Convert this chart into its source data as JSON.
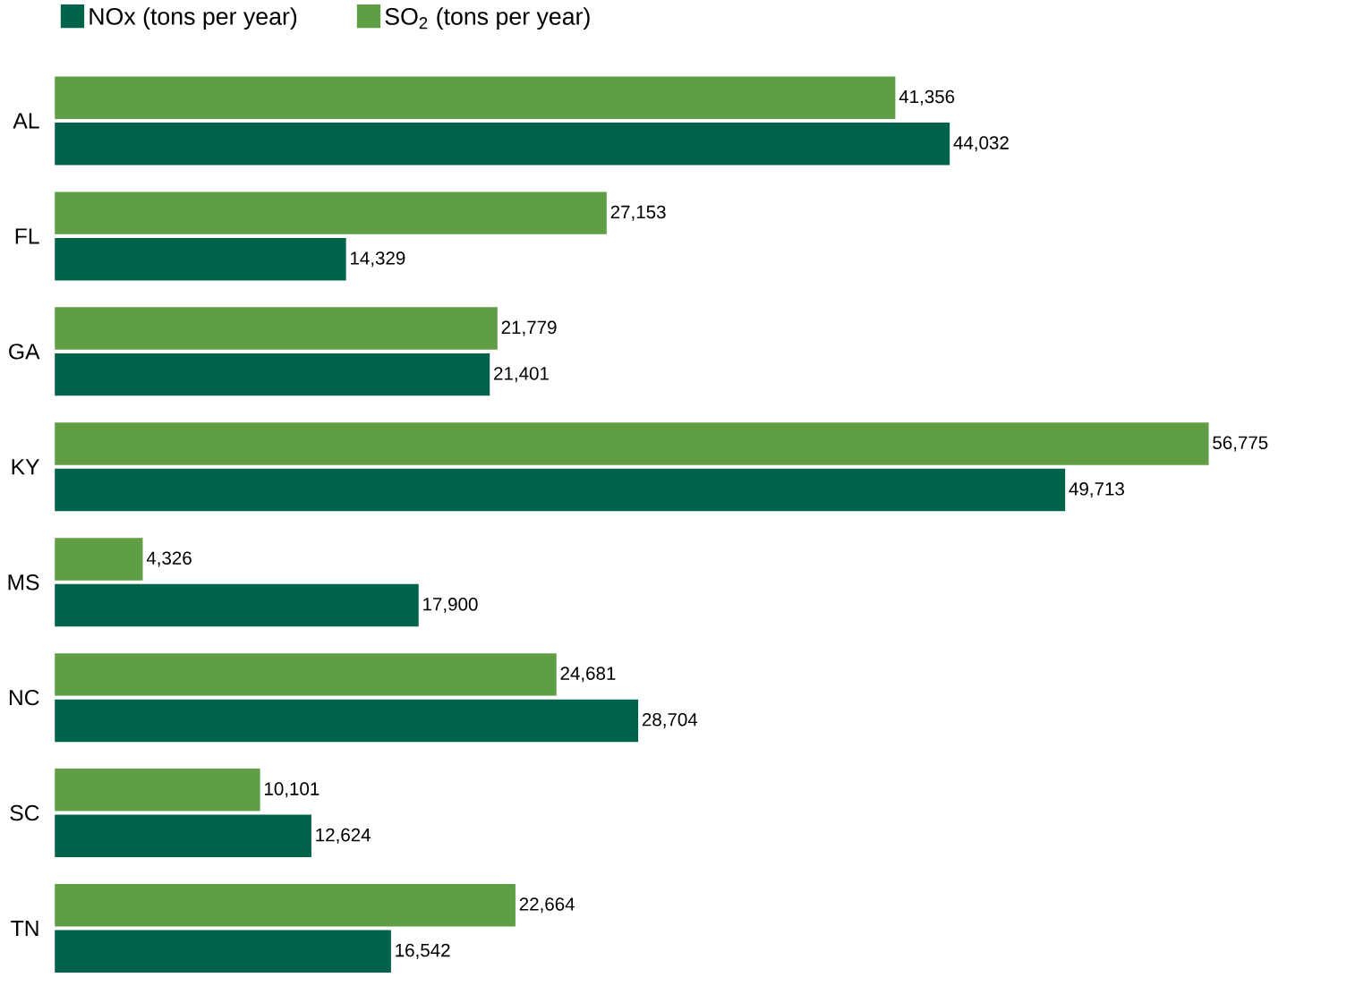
{
  "chart_data": {
    "type": "bar",
    "orientation": "horizontal",
    "categories": [
      "AL",
      "FL",
      "GA",
      "KY",
      "MS",
      "NC",
      "SC",
      "TN"
    ],
    "series": [
      {
        "name": "NOx (tons per year)",
        "color": "#00634a",
        "values": [
          44032,
          14329,
          21401,
          49713,
          17900,
          28704,
          12624,
          16542
        ],
        "value_labels": [
          "44,032",
          "14,329",
          "21,401",
          "49,713",
          "17,900",
          "28,704",
          "12,624",
          "16,542"
        ]
      },
      {
        "name": "SO$_{2}$ (tons per year)",
        "color": "#5f9e45",
        "values": [
          41356,
          27153,
          21779,
          56775,
          4326,
          24681,
          10101,
          22664
        ],
        "value_labels": [
          "41,356",
          "27,153",
          "21,779",
          "56,775",
          "4,326",
          "24,681",
          "10,101",
          "22,664"
        ]
      }
    ],
    "legend": "top left",
    "tick_labels": "y",
    "grid": false
  }
}
